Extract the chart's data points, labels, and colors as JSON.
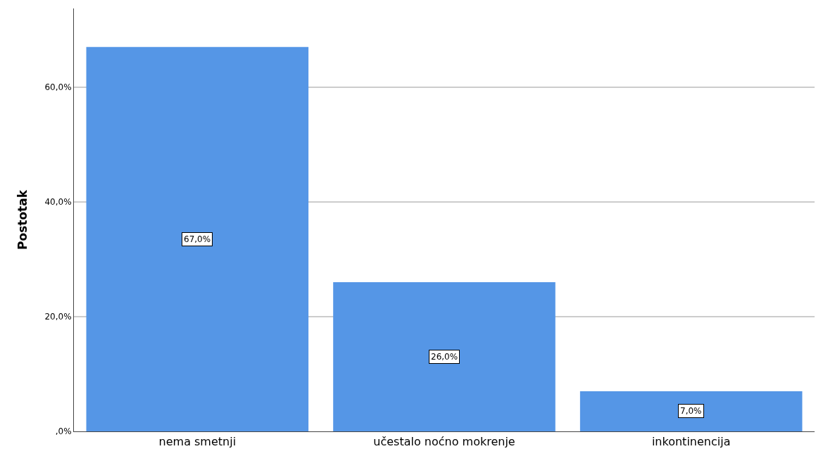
{
  "chart_data": {
    "type": "bar",
    "ylabel": "Postotak",
    "categories": [
      "nema smetnji",
      "učestalo noćno mokrenje",
      "inkontinencija"
    ],
    "values": [
      67.0,
      26.0,
      7.0
    ],
    "value_labels": [
      "67,0%",
      "26,0%",
      "7,0%"
    ],
    "color": "#5596e6",
    "ylim": [
      0,
      73.7
    ],
    "yticks": [
      {
        "value": 0,
        "label": ",0%"
      },
      {
        "value": 20,
        "label": "20,0%"
      },
      {
        "value": 40,
        "label": "40,0%"
      },
      {
        "value": 60,
        "label": "60,0%"
      }
    ],
    "grid": "y",
    "legend": false
  }
}
